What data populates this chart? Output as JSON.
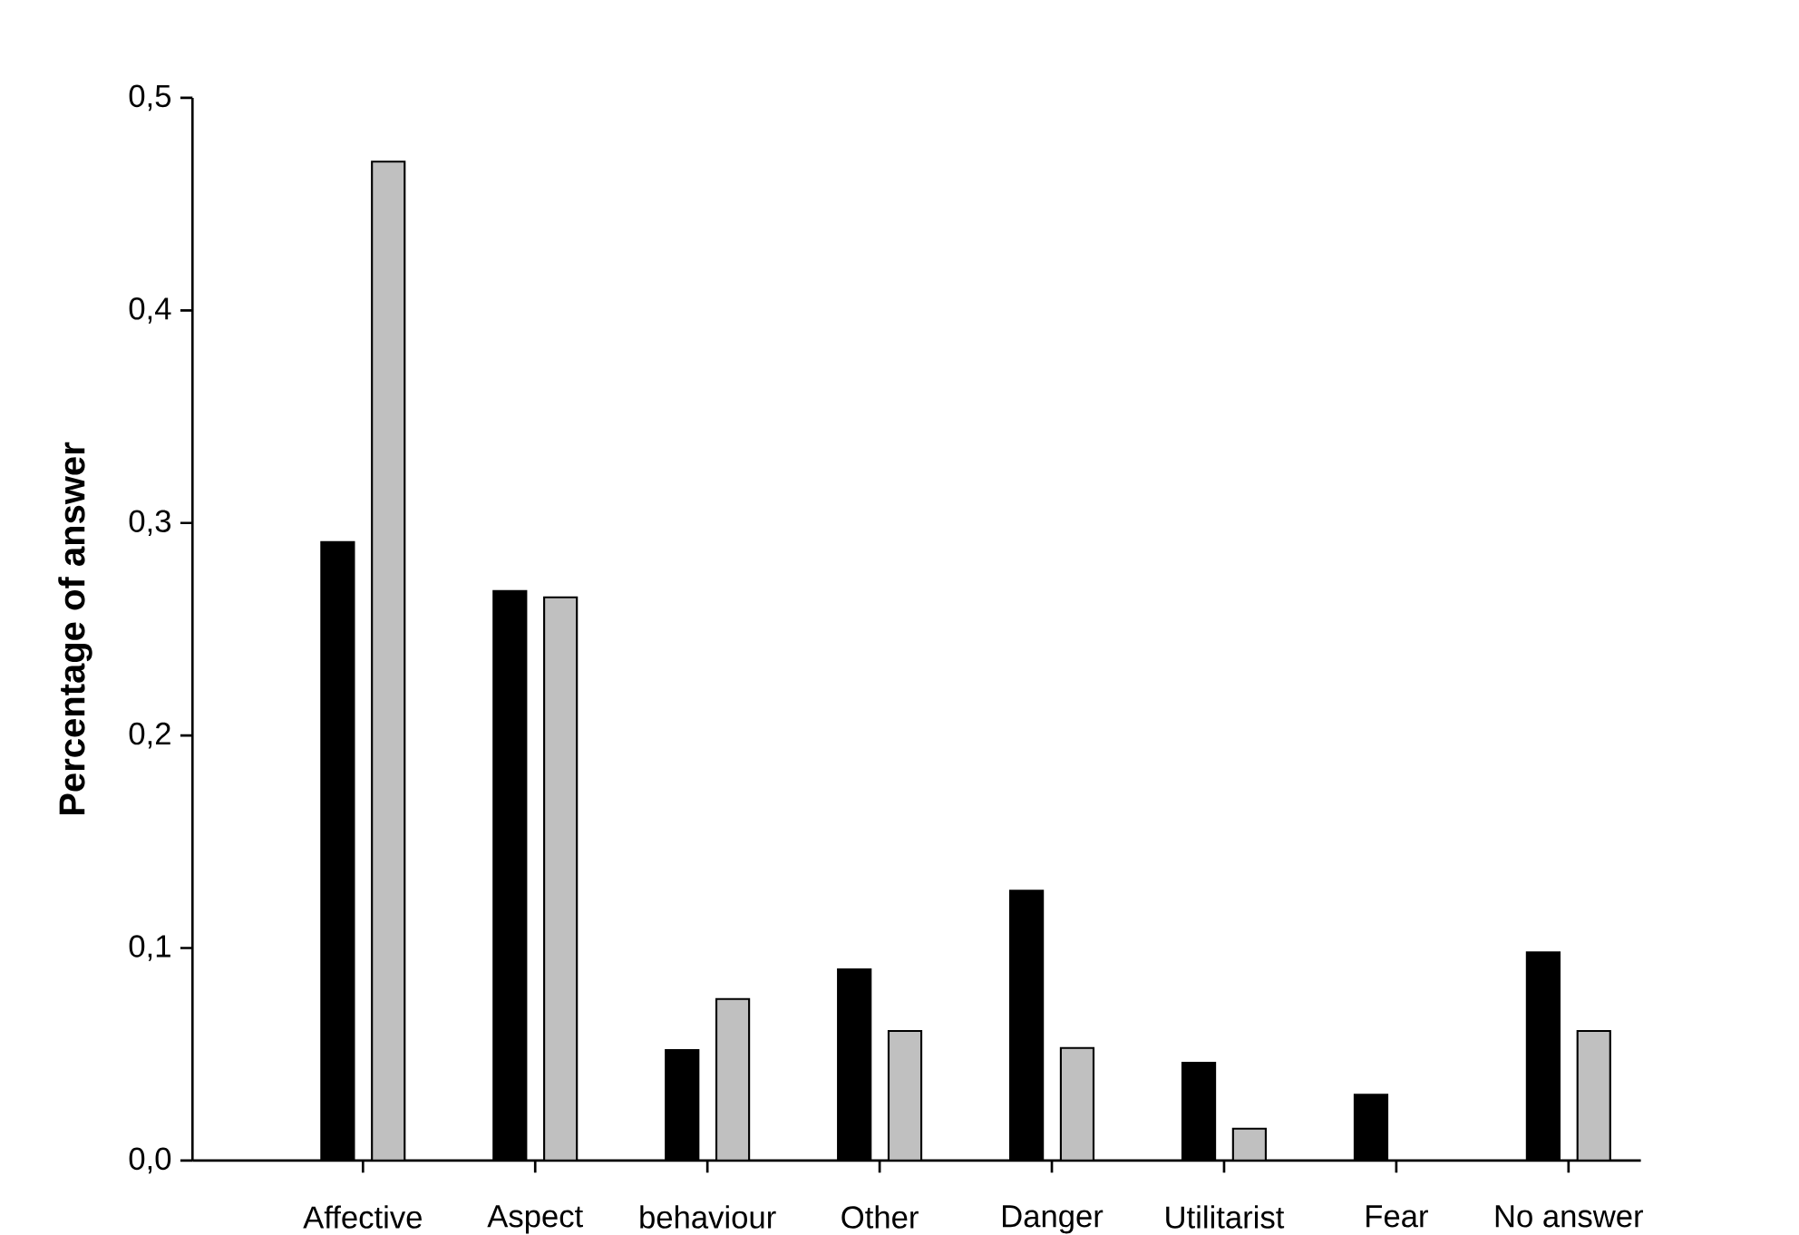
{
  "chart_data": {
    "type": "bar",
    "ylabel": "Percentage of answer",
    "categories": [
      "Affective",
      "Aspect",
      "behaviour",
      "Other",
      "Danger",
      "Utilitarist",
      "Fear",
      "No answer"
    ],
    "series": [
      {
        "color": "#000000",
        "values": [
          0.291,
          0.268,
          0.052,
          0.09,
          0.127,
          0.046,
          0.031,
          0.098
        ]
      },
      {
        "color": "#c0c0c0",
        "values": [
          0.47,
          0.265,
          0.076,
          0.061,
          0.053,
          0.015,
          null,
          0.061
        ]
      }
    ],
    "ylim": [
      0,
      0.5
    ],
    "yticks": [
      {
        "value": 0,
        "label": "0,0"
      },
      {
        "value": 0.1,
        "label": "0,1"
      },
      {
        "value": 0.2,
        "label": "0,2"
      },
      {
        "value": 0.3,
        "label": "0,3"
      },
      {
        "value": 0.4,
        "label": "0,4"
      },
      {
        "value": 0.5,
        "label": "0,5"
      }
    ],
    "grid": false
  }
}
